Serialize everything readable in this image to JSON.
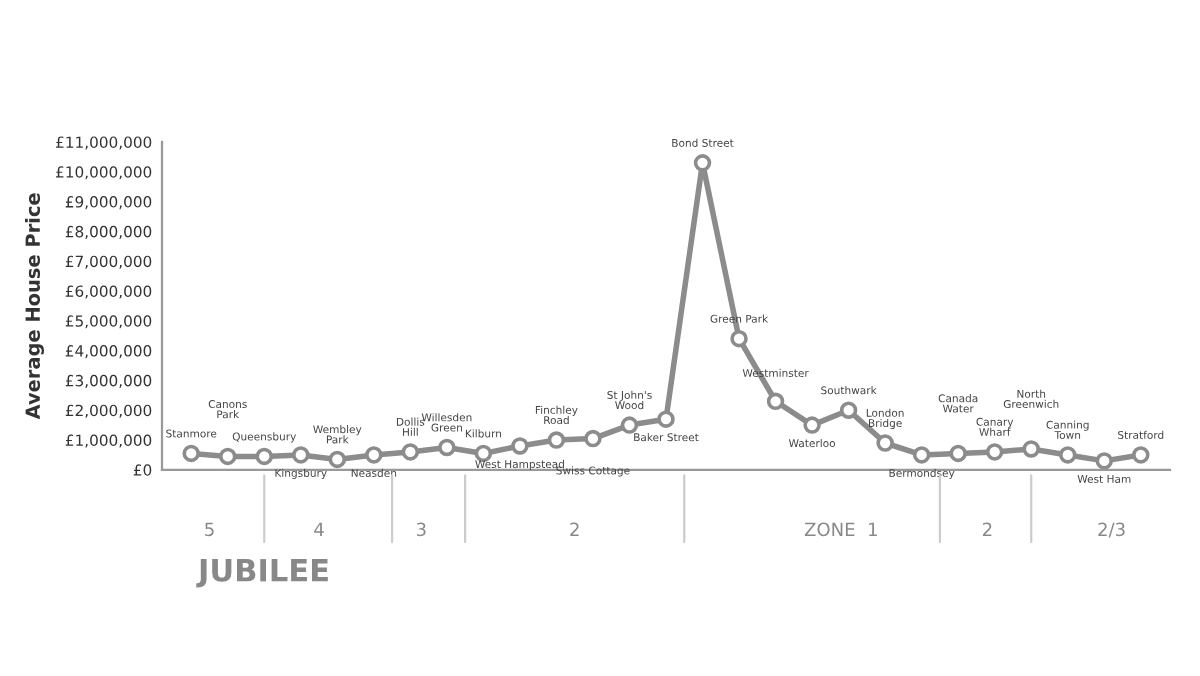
{
  "chart_data": {
    "type": "line",
    "ylabel": "Average House Price",
    "categories": [
      "Stanmore",
      "Canons Park",
      "Queensbury",
      "Kingsbury",
      "Wembley Park",
      "Neasden",
      "Dollis Hill",
      "Willesden Green",
      "Kilburn",
      "West Hampstead",
      "Finchley Road",
      "Swiss Cottage",
      "St John's Wood",
      "Baker Street",
      "Bond Street",
      "Green Park",
      "Westminster",
      "Waterloo",
      "Southwark",
      "London Bridge",
      "Bermondsey",
      "Canada Water",
      "Canary Wharf",
      "North Greenwich",
      "Canning Town",
      "West Ham",
      "Stratford"
    ],
    "series": [
      {
        "color": "#8c8c8c",
        "values": [
          550000,
          450000,
          450000,
          500000,
          350000,
          500000,
          600000,
          750000,
          550000,
          800000,
          1000000,
          1050000,
          1500000,
          1700000,
          10300000,
          4400000,
          2300000,
          1500000,
          2000000,
          900000,
          500000,
          550000,
          600000,
          700000,
          500000,
          300000,
          500000
        ]
      }
    ],
    "ylim": [
      0,
      11000000
    ],
    "yticks": [
      {
        "value": 0,
        "label": "£0"
      },
      {
        "value": 1000000,
        "label": "£1,000,000"
      },
      {
        "value": 2000000,
        "label": "£2,000,000"
      },
      {
        "value": 3000000,
        "label": "£3,000,000"
      },
      {
        "value": 4000000,
        "label": "£4,000,000"
      },
      {
        "value": 5000000,
        "label": "£5,000,000"
      },
      {
        "value": 6000000,
        "label": "£6,000,000"
      },
      {
        "value": 7000000,
        "label": "£7,000,000"
      },
      {
        "value": 8000000,
        "label": "£8,000,000"
      },
      {
        "value": 9000000,
        "label": "£9,000,000"
      },
      {
        "value": 10000000,
        "label": "£10,000,000"
      },
      {
        "value": 11000000,
        "label": "£11,000,000"
      }
    ],
    "tick_labels": "y",
    "grid": false,
    "marker": "circle",
    "line_style": "solid",
    "annotations": [
      "5",
      "4",
      "3",
      "2",
      "ZONE  1",
      "2",
      "2/3",
      "JUBILEE"
    ]
  }
}
